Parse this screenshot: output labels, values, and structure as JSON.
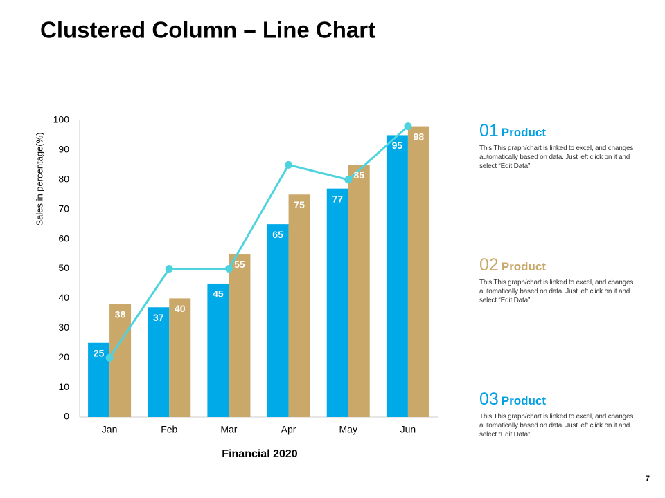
{
  "chart_data": {
    "type": "combo",
    "title": "Clustered Column – Line Chart",
    "x_label": "Financial 2020",
    "y_label": "Sales in percentage(%)",
    "categories": [
      "Jan",
      "Feb",
      "Mar",
      "Apr",
      "May",
      "Jun"
    ],
    "series": [
      {
        "type": "bar",
        "color": "#00a9e8",
        "values": [
          25,
          37,
          45,
          65,
          77,
          95
        ]
      },
      {
        "type": "bar",
        "color": "#c9a86a",
        "values": [
          38,
          40,
          55,
          75,
          85,
          98
        ]
      },
      {
        "type": "line",
        "color": "#4dd3e0",
        "values": [
          20,
          50,
          50,
          85,
          80,
          98
        ]
      }
    ],
    "ylim": [
      0,
      100
    ],
    "yticks": [
      0,
      10,
      20,
      30,
      40,
      50,
      60,
      70,
      80,
      90,
      100
    ],
    "grid": false
  },
  "panels": [
    {
      "number": "01",
      "label": "Product",
      "color": "#00a0e3",
      "text": "This This graph/chart is linked to excel, and changes automatically based on data. Just left click on it and select “Edit Data”."
    },
    {
      "number": "02",
      "label": "Product",
      "color": "#c9a86a",
      "text": "This This graph/chart is linked to excel, and changes automatically based on data. Just left click on it and select “Edit Data”."
    },
    {
      "number": "03",
      "label": "Product",
      "color": "#00a0e3",
      "text": "This This graph/chart is linked to excel, and changes automatically based on data. Just left click on it and select “Edit Data”."
    }
  ],
  "page_number": "7"
}
